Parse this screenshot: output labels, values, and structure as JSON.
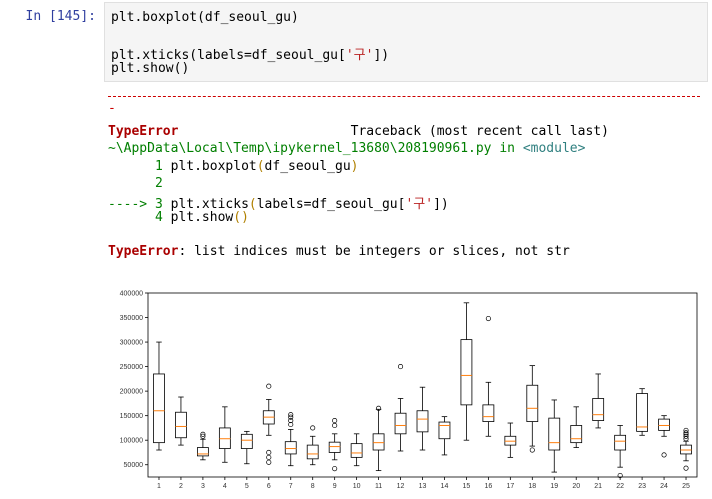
{
  "input_prompt": "In [145]:",
  "code_lines": [
    {
      "pre": "plt.boxplot(df_seoul_gu)",
      "str": "",
      "post": ""
    },
    {
      "pre": "",
      "str": "",
      "post": ""
    },
    {
      "pre": "plt.xticks(labels=df_seoul_gu[",
      "str": "'구'",
      "post": "])"
    },
    {
      "pre": "plt.show()",
      "str": "",
      "post": ""
    }
  ],
  "traceback": {
    "cont_dash": "-",
    "error_name": "TypeError",
    "header_right": "Traceback (most recent call last)",
    "file": "~\\AppData\\Local\\Temp\\ipykernel_13680\\208190961.py",
    "in_word": "in",
    "module": "<module>",
    "lines": [
      {
        "marker": "      1",
        "pre": " plt.boxplot",
        "paren_open": "(",
        "mid": "df_seoul_gu",
        "paren_close": ")",
        "str": "",
        "tail": ""
      },
      {
        "marker": "      2",
        "pre": "",
        "paren_open": "",
        "mid": "",
        "paren_close": "",
        "str": "",
        "tail": ""
      },
      {
        "marker": "----> 3",
        "pre": " plt.xticks",
        "paren_open": "(",
        "mid": "labels=df_seoul_gu[",
        "paren_close": "",
        "str": "'구'",
        "tail": "])"
      },
      {
        "marker": "      4",
        "pre": " plt.show",
        "paren_open": "(",
        "mid": "",
        "paren_close": ")",
        "str": "",
        "tail": ""
      }
    ],
    "message_name": "TypeError",
    "message": ": list indices must be integers or slices, not str"
  },
  "chart_data": {
    "type": "boxplot",
    "ylim": [
      25000,
      400000
    ],
    "yticks": [
      50000,
      100000,
      150000,
      200000,
      250000,
      300000,
      350000,
      400000
    ],
    "ytick_labels": [
      "50000",
      "100000",
      "150000",
      "200000",
      "250000",
      "300000",
      "350000",
      "400000"
    ],
    "categories": [
      "1",
      "2",
      "3",
      "4",
      "5",
      "6",
      "7",
      "8",
      "9",
      "10",
      "11",
      "12",
      "13",
      "14",
      "15",
      "16",
      "17",
      "18",
      "19",
      "20",
      "21",
      "22",
      "23",
      "24",
      "25"
    ],
    "boxes": [
      {
        "wlo": 80000,
        "q1": 95000,
        "med": 160000,
        "q3": 235000,
        "whi": 300000,
        "fliers": []
      },
      {
        "wlo": 90000,
        "q1": 105000,
        "med": 128000,
        "q3": 157000,
        "whi": 188000,
        "fliers": []
      },
      {
        "wlo": 60000,
        "q1": 68000,
        "med": 72000,
        "q3": 85000,
        "whi": 102000,
        "fliers": [
          108000,
          112000
        ]
      },
      {
        "wlo": 55000,
        "q1": 83000,
        "med": 103000,
        "q3": 125000,
        "whi": 168000,
        "fliers": []
      },
      {
        "wlo": 52000,
        "q1": 83000,
        "med": 100000,
        "q3": 112000,
        "whi": 118000,
        "fliers": []
      },
      {
        "wlo": 110000,
        "q1": 133000,
        "med": 147000,
        "q3": 160000,
        "whi": 183000,
        "fliers": [
          210000,
          75000,
          65000,
          55000
        ]
      },
      {
        "wlo": 48000,
        "q1": 72000,
        "med": 83000,
        "q3": 97000,
        "whi": 122000,
        "fliers": [
          132000,
          140000,
          147000,
          152000
        ]
      },
      {
        "wlo": 50000,
        "q1": 62000,
        "med": 72000,
        "q3": 90000,
        "whi": 108000,
        "fliers": [
          125000
        ]
      },
      {
        "wlo": 60000,
        "q1": 75000,
        "med": 87000,
        "q3": 96000,
        "whi": 113000,
        "fliers": [
          130000,
          140000,
          42000
        ]
      },
      {
        "wlo": 48000,
        "q1": 65000,
        "med": 74000,
        "q3": 93000,
        "whi": 113000,
        "fliers": []
      },
      {
        "wlo": 38000,
        "q1": 80000,
        "med": 95000,
        "q3": 113000,
        "whi": 163000,
        "fliers": [
          165000
        ]
      },
      {
        "wlo": 78000,
        "q1": 113000,
        "med": 130000,
        "q3": 155000,
        "whi": 185000,
        "fliers": [
          250000
        ]
      },
      {
        "wlo": 80000,
        "q1": 117000,
        "med": 143000,
        "q3": 160000,
        "whi": 208000,
        "fliers": []
      },
      {
        "wlo": 70000,
        "q1": 103000,
        "med": 130000,
        "q3": 137000,
        "whi": 148000,
        "fliers": []
      },
      {
        "wlo": 100000,
        "q1": 172000,
        "med": 232000,
        "q3": 305000,
        "whi": 380000,
        "fliers": []
      },
      {
        "wlo": 108000,
        "q1": 138000,
        "med": 148000,
        "q3": 172000,
        "whi": 218000,
        "fliers": [
          348000
        ]
      },
      {
        "wlo": 65000,
        "q1": 90000,
        "med": 98000,
        "q3": 108000,
        "whi": 135000,
        "fliers": []
      },
      {
        "wlo": 88000,
        "q1": 138000,
        "med": 165000,
        "q3": 212000,
        "whi": 252000,
        "fliers": [
          80000
        ]
      },
      {
        "wlo": 35000,
        "q1": 80000,
        "med": 95000,
        "q3": 145000,
        "whi": 182000,
        "fliers": []
      },
      {
        "wlo": 85000,
        "q1": 95000,
        "med": 103000,
        "q3": 130000,
        "whi": 168000,
        "fliers": []
      },
      {
        "wlo": 125000,
        "q1": 140000,
        "med": 152000,
        "q3": 185000,
        "whi": 235000,
        "fliers": []
      },
      {
        "wlo": 45000,
        "q1": 80000,
        "med": 98000,
        "q3": 110000,
        "whi": 130000,
        "fliers": [
          28000
        ]
      },
      {
        "wlo": 110000,
        "q1": 118000,
        "med": 127000,
        "q3": 195000,
        "whi": 205000,
        "fliers": []
      },
      {
        "wlo": 108000,
        "q1": 120000,
        "med": 130000,
        "q3": 143000,
        "whi": 150000,
        "fliers": [
          70000
        ]
      },
      {
        "wlo": 58000,
        "q1": 72000,
        "med": 80000,
        "q3": 90000,
        "whi": 98000,
        "fliers": [
          103000,
          108000,
          112000,
          115000,
          120000,
          43000
        ]
      }
    ]
  },
  "colors": {
    "median": "#ff7f0e",
    "box": "#000000",
    "prompt": "#303f9f"
  }
}
